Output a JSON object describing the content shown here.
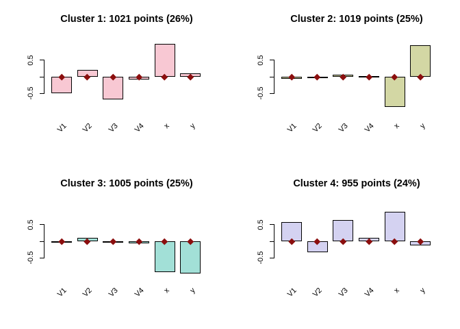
{
  "figure": {
    "background": "#ffffff",
    "axis_color": "#000000",
    "bar_border_color": "#000000",
    "marker": "diamond",
    "marker_color": "#8b0e0e",
    "marker_meaning": "overall mean (0)"
  },
  "chart_data": [
    {
      "type": "bar",
      "title": "Cluster 1: 1021 points (26%)",
      "n_points": 1021,
      "percent": 26,
      "categories": [
        "V1",
        "V2",
        "V3",
        "V4",
        "x",
        "y"
      ],
      "values": [
        -0.5,
        0.2,
        -0.67,
        -0.08,
        0.98,
        0.1
      ],
      "marker_values": [
        0,
        0,
        0,
        0,
        0,
        0
      ],
      "bar_color": "#f8c8d3",
      "yticks": [
        0.5,
        0,
        -0.5
      ],
      "ytick_labels": [
        "0.5",
        "",
        "-0.5"
      ],
      "ylim": [
        -1.1,
        1.1
      ],
      "grid": false,
      "legend": "none"
    },
    {
      "type": "bar",
      "title": "Cluster 2: 1019 points (25%)",
      "n_points": 1019,
      "percent": 25,
      "categories": [
        "V1",
        "V2",
        "V3",
        "V4",
        "x",
        "y"
      ],
      "values": [
        -0.07,
        -0.01,
        0.07,
        0.02,
        -0.91,
        0.94
      ],
      "marker_values": [
        0,
        0,
        0,
        0,
        0,
        0
      ],
      "bar_color": "#d3d7a4",
      "yticks": [
        0.5,
        0,
        -0.5
      ],
      "ytick_labels": [
        "0.5",
        "",
        "-0.5"
      ],
      "ylim": [
        -1.1,
        1.1
      ],
      "grid": false,
      "legend": "none"
    },
    {
      "type": "bar",
      "title": "Cluster 3: 1005 points (25%)",
      "n_points": 1005,
      "percent": 25,
      "categories": [
        "V1",
        "V2",
        "V3",
        "V4",
        "x",
        "y"
      ],
      "values": [
        -0.02,
        0.1,
        -0.02,
        -0.07,
        -0.93,
        -0.96
      ],
      "marker_values": [
        0,
        0,
        0,
        0,
        0,
        0
      ],
      "bar_color": "#a2e0d7",
      "yticks": [
        0.5,
        0,
        -0.5
      ],
      "ytick_labels": [
        "0.5",
        "",
        "-0.5"
      ],
      "ylim": [
        -1.1,
        1.1
      ],
      "grid": false,
      "legend": "none"
    },
    {
      "type": "bar",
      "title": "Cluster 4: 955 points (24%)",
      "n_points": 955,
      "percent": 24,
      "categories": [
        "V1",
        "V2",
        "V3",
        "V4",
        "x",
        "y"
      ],
      "values": [
        0.58,
        -0.32,
        0.64,
        0.11,
        0.89,
        -0.12
      ],
      "marker_values": [
        0,
        0,
        0,
        0,
        0,
        0
      ],
      "bar_color": "#d4d2f1",
      "yticks": [
        0.5,
        0,
        -0.5
      ],
      "ytick_labels": [
        "0.5",
        "",
        "-0.5"
      ],
      "ylim": [
        -1.1,
        1.1
      ],
      "grid": false,
      "legend": "none"
    }
  ]
}
